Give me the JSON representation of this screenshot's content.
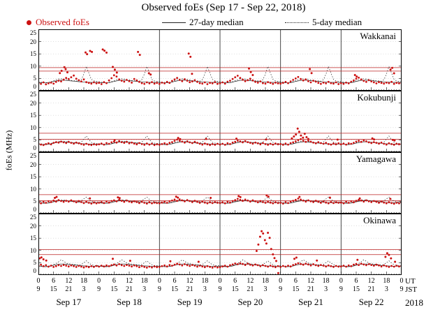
{
  "title": "Observed foEs (Sep 17 - Sep 22, 2018)",
  "legend": {
    "observed_label": "Observed foEs",
    "median27_label": "27-day median",
    "median5_label": "5-day median"
  },
  "y_axis_label": "foEs (MHz)",
  "colors": {
    "observed": "#cc1111",
    "criteria": "#bb2222",
    "median": "#222222",
    "grid": "#c8c8c8",
    "dayline": "#333333"
  },
  "axes": {
    "y_ticks": [
      0,
      5,
      10,
      15,
      20,
      25
    ],
    "y_max": 25,
    "hours_total": 144,
    "x_tick_step": 6,
    "day_line_hours": [
      48,
      72,
      96,
      120
    ],
    "ut_labels": [
      "0",
      "6",
      "12",
      "18",
      "0",
      "6",
      "12",
      "18",
      "0",
      "6",
      "12",
      "18",
      "0",
      "6",
      "12",
      "18",
      "0",
      "6",
      "12",
      "18",
      "0",
      "6",
      "12",
      "18",
      "0"
    ],
    "jst_labels": [
      "9",
      "15",
      "21",
      "3",
      "9",
      "15",
      "21",
      "3",
      "9",
      "15",
      "21",
      "3",
      "9",
      "15",
      "21",
      "3",
      "9",
      "15",
      "21",
      "3",
      "9",
      "15",
      "21",
      "3",
      "9"
    ],
    "ut_suffix": "UT",
    "jst_suffix": "JST",
    "dates": [
      "Sep 17",
      "Sep 18",
      "Sep 19",
      "Sep 20",
      "Sep 21",
      "Sep 22"
    ],
    "year": "2018"
  },
  "chart_data": [
    {
      "type": "scatter",
      "station": "Wakkanai",
      "observed_hourly": [
        3.1,
        2.8,
        3.4,
        2.6,
        3.0,
        3.3,
        2.9,
        3.6,
        4.1,
        3.8,
        4.5,
        5.2,
        4.8,
        5.5,
        6.2,
        4.9,
        4.3,
        3.8,
        4.6,
        3.5,
        3.2,
        2.9,
        3.4,
        3.0,
        3.2,
        2.7,
        3.5,
        3.1,
        4.2,
        5.1,
        6.3,
        5.8,
        4.6,
        4.1,
        3.7,
        4.4,
        3.9,
        3.3,
        4.8,
        4.2,
        3.6,
        3.1,
        2.8,
        3.4,
        3.0,
        3.5,
        2.9,
        3.2,
        2.8,
        3.3,
        3.0,
        3.6,
        3.2,
        4.0,
        4.6,
        5.2,
        4.4,
        3.9,
        4.7,
        4.1,
        3.5,
        3.8,
        4.3,
        3.6,
        3.1,
        2.9,
        3.4,
        2.7,
        3.2,
        3.0,
        3.5,
        2.8,
        3.0,
        3.4,
        2.9,
        3.7,
        4.1,
        4.8,
        5.5,
        6.1,
        5.2,
        4.5,
        3.9,
        4.3,
        4.9,
        4.2,
        3.6,
        3.3,
        3.8,
        3.1,
        2.9,
        3.5,
        3.2,
        2.8,
        3.3,
        3.0,
        2.9,
        3.2,
        3.6,
        3.1,
        3.8,
        4.4,
        5.0,
        5.6,
        4.8,
        4.2,
        4.6,
        3.9,
        3.4,
        4.1,
        3.7,
        3.2,
        2.8,
        3.3,
        3.0,
        3.6,
        3.1,
        2.9,
        3.4,
        2.7,
        3.1,
        2.8,
        3.3,
        3.0,
        3.7,
        4.2,
        4.9,
        5.3,
        4.6,
        4.0,
        3.6,
        4.3,
        3.8,
        3.4,
        3.0,
        3.5,
        3.2,
        2.9,
        3.3,
        3.1,
        3.6,
        2.8,
        3.2,
        3.0,
        3.1
      ],
      "extra_points": [
        [
          8.5,
          7.2
        ],
        [
          9.2,
          8.1
        ],
        [
          10.3,
          9.6
        ],
        [
          10.8,
          8.8
        ],
        [
          11.5,
          7.5
        ],
        [
          18.7,
          15.6
        ],
        [
          19.3,
          14.9
        ],
        [
          20.5,
          16.2
        ],
        [
          21.2,
          15.8
        ],
        [
          25.5,
          16.8
        ],
        [
          26.2,
          16.3
        ],
        [
          27.0,
          15.5
        ],
        [
          29.5,
          9.7
        ],
        [
          30.3,
          8.6
        ],
        [
          31.1,
          7.4
        ],
        [
          39.5,
          15.8
        ],
        [
          40.2,
          14.6
        ],
        [
          43.8,
          7.1
        ],
        [
          44.5,
          6.6
        ],
        [
          59.6,
          15.1
        ],
        [
          60.3,
          13.8
        ],
        [
          60.9,
          6.9
        ],
        [
          83.5,
          9.0
        ],
        [
          84.2,
          7.6
        ],
        [
          85.0,
          6.4
        ],
        [
          107.6,
          8.8
        ],
        [
          108.3,
          7.2
        ],
        [
          125.5,
          6.4
        ],
        [
          126.2,
          5.8
        ],
        [
          139.6,
          8.6
        ],
        [
          140.3,
          9.3
        ],
        [
          141.0,
          7.1
        ]
      ],
      "median27_pattern": [
        3.4,
        3.3,
        3.2,
        3.2,
        3.3,
        3.5,
        3.8,
        4.0,
        4.2,
        4.3,
        4.3,
        4.2,
        4.1,
        4.0,
        3.9,
        3.8,
        3.7,
        3.6,
        3.5,
        3.5,
        3.4,
        3.4,
        3.4,
        3.4
      ],
      "median5_pattern": [
        3.7,
        3.5,
        3.4,
        3.3,
        3.4,
        3.7,
        4.1,
        4.5,
        4.8,
        4.9,
        4.8,
        4.6,
        4.4,
        4.2,
        4.1,
        4.0,
        3.9,
        4.5,
        6.8,
        9.9,
        7.2,
        4.6,
        4.0,
        3.8
      ],
      "criteria_lines": [
        8.0,
        9.4
      ]
    },
    {
      "type": "scatter",
      "station": "Kokubunji",
      "observed_hourly": [
        3.4,
        3.1,
        2.9,
        3.3,
        3.6,
        3.2,
        3.8,
        4.1,
        3.9,
        4.3,
        4.0,
        3.7,
        4.2,
        3.8,
        3.5,
        3.9,
        3.6,
        3.3,
        3.0,
        3.4,
        3.1,
        2.9,
        3.2,
        3.0,
        3.2,
        3.5,
        3.1,
        3.7,
        3.4,
        4.0,
        4.3,
        3.9,
        4.5,
        4.1,
        3.8,
        4.2,
        3.6,
        3.9,
        3.5,
        3.2,
        3.7,
        3.3,
        3.0,
        3.5,
        3.1,
        3.4,
        2.9,
        3.2,
        3.0,
        3.3,
        3.6,
        3.2,
        3.8,
        4.1,
        4.6,
        5.1,
        4.7,
        4.3,
        3.9,
        4.4,
        4.0,
        3.7,
        4.2,
        3.8,
        3.4,
        3.1,
        3.5,
        3.2,
        2.9,
        3.3,
        3.0,
        3.4,
        3.1,
        3.4,
        3.0,
        3.6,
        3.3,
        3.9,
        4.2,
        4.7,
        4.4,
        4.0,
        4.5,
        4.1,
        3.8,
        3.5,
        3.9,
        3.6,
        3.2,
        3.7,
        3.3,
        3.0,
        3.4,
        3.1,
        3.5,
        3.2,
        3.3,
        3.0,
        3.5,
        3.1,
        3.7,
        4.0,
        4.4,
        4.9,
        5.3,
        4.6,
        4.2,
        4.7,
        4.3,
        3.9,
        3.6,
        4.1,
        3.7,
        3.4,
        3.8,
        3.3,
        3.1,
        3.5,
        3.2,
        3.6,
        3.2,
        3.5,
        3.1,
        3.6,
        3.4,
        3.8,
        4.3,
        4.6,
        4.2,
        4.8,
        4.4,
        4.0,
        3.7,
        4.1,
        3.8,
        3.5,
        3.9,
        3.4,
        3.1,
        3.6,
        3.3,
        3.0,
        3.4,
        3.2,
        3.3
      ],
      "extra_points": [
        [
          30.2,
          4.9
        ],
        [
          55.4,
          5.8
        ],
        [
          56.2,
          5.3
        ],
        [
          66.5,
          5.4
        ],
        [
          78.5,
          5.5
        ],
        [
          90.3,
          5.2
        ],
        [
          100.5,
          5.6
        ],
        [
          101.3,
          6.4
        ],
        [
          102.1,
          7.2
        ],
        [
          102.8,
          9.6
        ],
        [
          103.4,
          8.3
        ],
        [
          104.1,
          6.8
        ],
        [
          104.9,
          5.9
        ],
        [
          105.6,
          7.5
        ],
        [
          106.3,
          6.1
        ],
        [
          107.0,
          5.4
        ],
        [
          118.6,
          5.1
        ],
        [
          132.4,
          5.6
        ],
        [
          133.1,
          5.2
        ],
        [
          140.5,
          5.0
        ],
        [
          141.2,
          4.8
        ]
      ],
      "median27_pattern": [
        3.3,
        3.2,
        3.1,
        3.1,
        3.2,
        3.4,
        3.7,
        3.9,
        4.1,
        4.2,
        4.2,
        4.1,
        4.0,
        3.9,
        3.8,
        3.7,
        3.6,
        3.5,
        3.4,
        3.4,
        3.3,
        3.3,
        3.3,
        3.3
      ],
      "median5_pattern": [
        3.5,
        3.4,
        3.3,
        3.2,
        3.3,
        3.6,
        3.9,
        4.2,
        4.4,
        4.5,
        4.4,
        4.3,
        4.1,
        4.0,
        3.9,
        3.8,
        3.8,
        4.1,
        5.3,
        6.6,
        5.1,
        4.0,
        3.7,
        3.6
      ],
      "criteria_lines": [
        5.2,
        7.7
      ]
    },
    {
      "type": "scatter",
      "station": "Yamagawa",
      "observed_hourly": [
        4.6,
        4.2,
        4.8,
        4.4,
        5.0,
        4.7,
        5.3,
        4.9,
        5.5,
        5.1,
        4.8,
        5.2,
        4.9,
        5.4,
        5.0,
        4.6,
        5.1,
        4.7,
        4.3,
        4.8,
        4.4,
        4.1,
        4.5,
        4.2,
        4.4,
        4.7,
        4.3,
        4.9,
        4.5,
        5.1,
        5.4,
        5.0,
        5.6,
        5.2,
        4.8,
        5.3,
        4.9,
        4.6,
        5.0,
        4.7,
        4.3,
        4.8,
        4.4,
        4.1,
        4.6,
        4.2,
        4.5,
        4.3,
        4.2,
        4.5,
        4.8,
        4.4,
        5.0,
        5.3,
        5.7,
        5.2,
        5.8,
        5.4,
        5.0,
        5.5,
        5.1,
        4.7,
        5.2,
        4.8,
        4.4,
        4.9,
        4.5,
        4.2,
        4.6,
        4.3,
        4.7,
        4.4,
        4.3,
        4.6,
        4.2,
        4.8,
        4.5,
        5.1,
        5.5,
        6.0,
        5.6,
        5.2,
        5.7,
        5.3,
        4.9,
        5.4,
        5.0,
        4.6,
        5.1,
        4.7,
        4.4,
        4.8,
        4.5,
        4.2,
        4.6,
        4.3,
        4.4,
        4.1,
        4.7,
        4.3,
        4.9,
        5.2,
        5.6,
        6.1,
        5.7,
        5.3,
        4.9,
        5.4,
        5.0,
        4.7,
        5.2,
        4.8,
        4.4,
        4.9,
        4.5,
        4.2,
        4.7,
        4.3,
        4.6,
        4.4,
        4.5,
        4.2,
        4.8,
        4.4,
        5.0,
        4.6,
        5.2,
        5.6,
        5.3,
        4.9,
        5.4,
        5.0,
        4.7,
        5.1,
        4.8,
        4.4,
        4.9,
        4.5,
        4.2,
        4.6,
        4.3,
        4.0,
        4.4,
        4.2,
        4.5
      ],
      "extra_points": [
        [
          6.5,
          6.4
        ],
        [
          7.2,
          6.8
        ],
        [
          20.4,
          6.2
        ],
        [
          31.5,
          6.6
        ],
        [
          32.2,
          6.3
        ],
        [
          54.6,
          6.9
        ],
        [
          55.3,
          6.5
        ],
        [
          68.3,
          6.4
        ],
        [
          79.4,
          7.1
        ],
        [
          80.1,
          6.7
        ],
        [
          90.5,
          7.4
        ],
        [
          91.2,
          6.9
        ],
        [
          103.5,
          6.8
        ],
        [
          115.6,
          6.5
        ],
        [
          127.4,
          6.2
        ],
        [
          139.5,
          6.0
        ]
      ],
      "median27_pattern": [
        4.4,
        4.3,
        4.2,
        4.2,
        4.3,
        4.5,
        4.8,
        5.0,
        5.2,
        5.3,
        5.3,
        5.2,
        5.1,
        5.0,
        4.9,
        4.8,
        4.7,
        4.6,
        4.5,
        4.5,
        4.4,
        4.4,
        4.4,
        4.4
      ],
      "median5_pattern": [
        4.6,
        4.5,
        4.4,
        4.3,
        4.4,
        4.7,
        5.0,
        5.3,
        5.5,
        5.6,
        5.5,
        5.4,
        5.2,
        5.1,
        5.0,
        4.9,
        4.9,
        5.2,
        6.0,
        6.7,
        5.8,
        5.0,
        4.8,
        4.7
      ],
      "criteria_lines": [
        5.2,
        7.7
      ]
    },
    {
      "type": "scatter",
      "station": "Okinawa",
      "observed_hourly": [
        3.8,
        4.2,
        3.6,
        4.0,
        3.4,
        3.8,
        3.3,
        3.6,
        4.0,
        3.7,
        4.1,
        3.8,
        3.5,
        3.9,
        3.6,
        3.3,
        3.7,
        3.4,
        3.1,
        3.5,
        3.2,
        3.6,
        3.3,
        3.7,
        3.4,
        3.8,
        3.5,
        3.9,
        3.6,
        4.0,
        4.3,
        3.9,
        4.4,
        4.0,
        3.7,
        4.1,
        3.8,
        3.5,
        3.9,
        3.6,
        3.2,
        3.6,
        3.3,
        3.0,
        3.4,
        3.1,
        3.5,
        3.2,
        3.3,
        3.6,
        3.9,
        3.5,
        4.1,
        3.8,
        4.2,
        4.6,
        4.3,
        3.9,
        4.4,
        4.0,
        3.7,
        4.1,
        3.8,
        3.4,
        3.8,
        3.5,
        3.2,
        3.6,
        3.3,
        3.0,
        3.4,
        3.1,
        3.2,
        3.5,
        3.8,
        3.4,
        4.0,
        4.3,
        4.7,
        4.4,
        4.8,
        4.5,
        4.1,
        4.6,
        4.2,
        3.9,
        4.3,
        4.0,
        3.6,
        4.0,
        3.7,
        3.4,
        3.8,
        3.5,
        3.2,
        3.6,
        3.3,
        3.7,
        3.4,
        3.8,
        3.5,
        4.1,
        4.4,
        4.8,
        4.5,
        4.2,
        4.6,
        4.3,
        3.9,
        4.4,
        4.0,
        3.7,
        4.1,
        3.8,
        3.5,
        3.9,
        3.6,
        3.3,
        3.7,
        3.4,
        3.5,
        3.8,
        3.4,
        3.9,
        3.6,
        4.2,
        4.5,
        4.1,
        4.6,
        4.3,
        4.0,
        4.4,
        4.1,
        3.8,
        4.2,
        3.9,
        3.5,
        3.9,
        3.6,
        3.3,
        3.7,
        3.4,
        3.8,
        3.5,
        3.6
      ],
      "extra_points": [
        [
          0.5,
          6.8
        ],
        [
          1.2,
          7.2
        ],
        [
          2.0,
          6.4
        ],
        [
          3.1,
          5.9
        ],
        [
          29.5,
          6.6
        ],
        [
          36.4,
          5.8
        ],
        [
          52.3,
          5.6
        ],
        [
          63.5,
          5.4
        ],
        [
          86.5,
          9.8
        ],
        [
          87.2,
          12.4
        ],
        [
          87.9,
          15.6
        ],
        [
          88.5,
          17.8
        ],
        [
          89.1,
          16.9
        ],
        [
          89.8,
          14.2
        ],
        [
          90.4,
          12.8
        ],
        [
          91.0,
          17.2
        ],
        [
          91.7,
          15.1
        ],
        [
          92.3,
          10.6
        ],
        [
          93.0,
          8.4
        ],
        [
          93.6,
          6.9
        ],
        [
          94.3,
          5.7
        ],
        [
          95.1,
          0.8
        ],
        [
          101.5,
          6.6
        ],
        [
          102.3,
          7.1
        ],
        [
          110.4,
          5.9
        ],
        [
          126.5,
          6.2
        ],
        [
          137.6,
          7.4
        ],
        [
          138.3,
          8.9
        ],
        [
          139.0,
          8.2
        ],
        [
          139.8,
          6.8
        ],
        [
          141.4,
          5.4
        ]
      ],
      "median27_pattern": [
        3.6,
        3.5,
        3.4,
        3.4,
        3.5,
        3.7,
        4.0,
        4.2,
        4.4,
        4.5,
        4.5,
        4.4,
        4.3,
        4.2,
        4.1,
        4.0,
        3.9,
        3.8,
        3.7,
        3.7,
        3.6,
        3.6,
        3.6,
        3.6
      ],
      "median5_pattern": [
        3.8,
        3.7,
        3.6,
        3.5,
        3.6,
        3.9,
        4.3,
        4.7,
        5.4,
        6.2,
        5.6,
        4.9,
        4.6,
        4.4,
        4.3,
        4.2,
        4.1,
        4.3,
        5.0,
        5.8,
        4.9,
        4.2,
        3.9,
        3.8
      ],
      "criteria_lines": [
        8.3,
        10.4
      ]
    }
  ]
}
